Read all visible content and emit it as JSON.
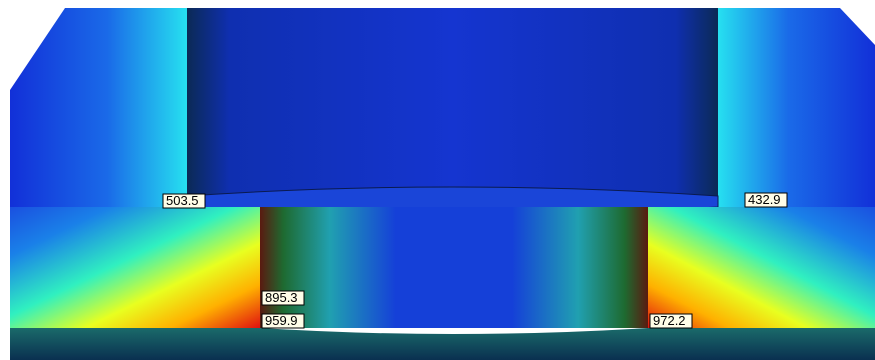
{
  "labels": [
    503.5,
    432.9,
    895.3,
    959.9,
    972.2
  ]
}
